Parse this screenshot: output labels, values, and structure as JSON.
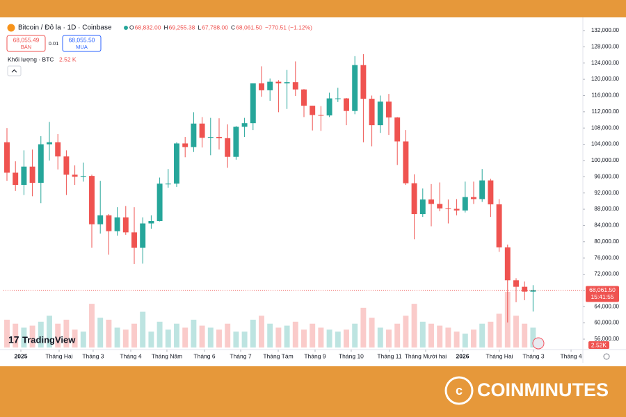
{
  "chart_data": {
    "type": "candlestick",
    "title": "Bitcoin / Đô la · 1D · Coinbase",
    "ohlc_header": [
      {
        "label": "O",
        "value": "68,832.00"
      },
      {
        "label": "H",
        "value": "69,255.38"
      },
      {
        "label": "L",
        "value": "67,788.00"
      },
      {
        "label": "C",
        "value": "68,061.50"
      }
    ],
    "change": "−770.51 (−1.12%)",
    "sell": {
      "price": "68,055.49",
      "label": "BÁN"
    },
    "spread": "0.01",
    "buy": {
      "price": "68,055.50",
      "label": "MUA"
    },
    "volume_title": "Khối lượng · BTC",
    "volume_value": "2.52 K",
    "volume_tag": "2.52K",
    "countdown": "15:41:55",
    "last_price": {
      "value": 68061.5,
      "label": "68,061.50"
    },
    "candles": {
      "open": [
        104500,
        97000,
        94000,
        98500,
        94500,
        104000,
        104500,
        101000,
        96500,
        96000,
        96200,
        84300,
        86500,
        82600,
        86000,
        82300,
        78500,
        84500,
        85100,
        94300,
        94300,
        104200,
        103300,
        109100,
        105600,
        105800,
        105500,
        100900,
        108300,
        109200,
        119000,
        117300,
        119400,
        119000,
        119300,
        117500,
        113500,
        111200,
        111100,
        115300,
        115300,
        112200,
        123500,
        115200,
        108700,
        114500,
        110600,
        104700,
        94400,
        86800,
        90400,
        89300,
        88200,
        88100,
        87700,
        91000,
        90500,
        95100,
        89200,
        78600,
        70500,
        68900,
        67700
      ],
      "high": [
        108000,
        99800,
        102500,
        102700,
        106000,
        109500,
        106500,
        102500,
        98800,
        99500,
        96500,
        95000,
        86800,
        88500,
        88800,
        88500,
        86000,
        86500,
        95800,
        97900,
        104500,
        105800,
        111900,
        110700,
        110500,
        110400,
        108900,
        108500,
        110500,
        119000,
        123200,
        120200,
        119800,
        122300,
        124400,
        117600,
        113500,
        113400,
        116700,
        117900,
        115400,
        125700,
        126200,
        116000,
        116000,
        116400,
        110700,
        107500,
        96600,
        93100,
        94200,
        94600,
        90400,
        90500,
        94800,
        94800,
        97900,
        95500,
        90500,
        79300,
        71000,
        70200,
        69300
      ],
      "low": [
        95000,
        92500,
        91500,
        91200,
        89500,
        100000,
        97800,
        91500,
        94000,
        94800,
        78500,
        82000,
        76800,
        81500,
        81700,
        74500,
        74600,
        83200,
        85000,
        93300,
        93500,
        100800,
        102100,
        103200,
        101300,
        102700,
        98200,
        100200,
        105800,
        107500,
        115700,
        114700,
        111900,
        112700,
        115900,
        110700,
        107400,
        107300,
        110700,
        114400,
        108700,
        111400,
        104500,
        103500,
        106800,
        106300,
        98900,
        94000,
        80600,
        86100,
        83800,
        87500,
        84500,
        86500,
        87200,
        89300,
        89800,
        86100,
        77500,
        60100,
        65100,
        65600,
        62800
      ],
      "close": [
        97000,
        94000,
        98500,
        94500,
        104000,
        104500,
        101000,
        96500,
        96000,
        96200,
        84300,
        86500,
        82600,
        86000,
        82300,
        78500,
        84500,
        85100,
        94300,
        94300,
        104200,
        103300,
        109100,
        105600,
        105800,
        105500,
        100900,
        108300,
        109200,
        119000,
        117300,
        119400,
        119000,
        119300,
        117500,
        113500,
        111200,
        111100,
        115300,
        115300,
        112200,
        123500,
        115200,
        108700,
        114500,
        110600,
        104700,
        94400,
        86800,
        90400,
        89300,
        88200,
        88100,
        87700,
        91000,
        90500,
        95100,
        89200,
        78600,
        70500,
        68900,
        67700,
        68061.5
      ]
    },
    "volume": [
      14,
      12,
      10,
      11,
      13,
      16,
      12,
      14,
      9,
      8,
      22,
      15,
      14,
      10,
      9,
      12,
      18,
      8,
      13,
      9,
      12,
      10,
      14,
      11,
      10,
      9,
      12,
      8,
      8,
      14,
      16,
      12,
      10,
      11,
      13,
      9,
      12,
      10,
      9,
      8,
      9,
      12,
      20,
      15,
      10,
      9,
      12,
      16,
      22,
      13,
      12,
      11,
      10,
      8,
      7,
      9,
      12,
      13,
      17,
      28,
      16,
      12,
      10
    ],
    "xlim": [
      -0.41,
      67.87
    ],
    "xticks": [
      {
        "value": 1.64,
        "label": "2025"
      },
      {
        "value": 6.15,
        "label": "Tháng Hai"
      },
      {
        "value": 10.16,
        "label": "Tháng 3"
      },
      {
        "value": 14.59,
        "label": "Tháng 4"
      },
      {
        "value": 18.85,
        "label": "Tháng Năm"
      },
      {
        "value": 23.28,
        "label": "Tháng 6"
      },
      {
        "value": 27.54,
        "label": "Tháng 7"
      },
      {
        "value": 31.97,
        "label": "Tháng Tám"
      },
      {
        "value": 36.31,
        "label": "Tháng 9"
      },
      {
        "value": 40.57,
        "label": "Tháng 10"
      },
      {
        "value": 45.08,
        "label": "Tháng 11"
      },
      {
        "value": 49.34,
        "label": "Tháng Mười hai"
      },
      {
        "value": 53.69,
        "label": "2026"
      },
      {
        "value": 58.03,
        "label": "Tháng Hai"
      },
      {
        "value": 62.05,
        "label": "Tháng 3"
      },
      {
        "value": 66.48,
        "label": "Tháng 4"
      }
    ],
    "ylim": [
      56000,
      132000
    ],
    "yticks": [
      {
        "value": 56000,
        "label": "56,000.00"
      },
      {
        "value": 60000,
        "label": "60,000.00"
      },
      {
        "value": 64000,
        "label": "64,000.00"
      },
      {
        "value": 68000,
        "label": "68,000.00"
      },
      {
        "value": 72000,
        "label": "72,000.00"
      },
      {
        "value": 76000,
        "label": "76,000.00"
      },
      {
        "value": 80000,
        "label": "80,000.00"
      },
      {
        "value": 84000,
        "label": "84,000.00"
      },
      {
        "value": 88000,
        "label": "88,000.00"
      },
      {
        "value": 92000,
        "label": "92,000.00"
      },
      {
        "value": 96000,
        "label": "96,000.00"
      },
      {
        "value": 100000,
        "label": "100,000.00"
      },
      {
        "value": 104000,
        "label": "104,000.00"
      },
      {
        "value": 108000,
        "label": "108,000.00"
      },
      {
        "value": 112000,
        "label": "112,000.00"
      },
      {
        "value": 116000,
        "label": "116,000.00"
      },
      {
        "value": 120000,
        "label": "120,000.00"
      },
      {
        "value": 124000,
        "label": "124,000.00"
      },
      {
        "value": 128000,
        "label": "128,000.00"
      },
      {
        "value": 132000,
        "label": "132,000.00"
      }
    ],
    "colors": {
      "up": "#26a69a",
      "down": "#ef5350"
    },
    "grid": false
  },
  "branding": {
    "logo": "TradingView",
    "site": "COINMINUTES"
  }
}
